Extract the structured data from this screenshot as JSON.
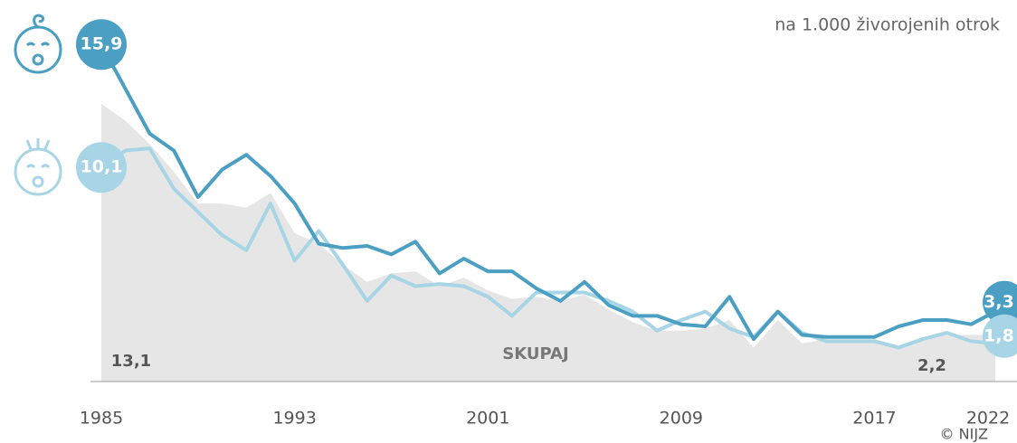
{
  "chart_data": {
    "type": "line",
    "annotation": "na 1.000 živorojenih otrok",
    "source": "© NIJZ",
    "x": [
      1985,
      1986,
      1987,
      1988,
      1989,
      1990,
      1991,
      1992,
      1993,
      1994,
      1995,
      1996,
      1997,
      1998,
      1999,
      2000,
      2001,
      2002,
      2003,
      2004,
      2005,
      2006,
      2007,
      2008,
      2009,
      2010,
      2011,
      2012,
      2013,
      2014,
      2015,
      2016,
      2017,
      2018,
      2019,
      2020,
      2021,
      2022
    ],
    "xlim": [
      1985,
      2022
    ],
    "xticks": [
      1985,
      1993,
      2001,
      2009,
      2017,
      2022
    ],
    "ylim": [
      0,
      18
    ],
    "series": [
      {
        "name": "SKUPAJ",
        "color": "#e6e6e6",
        "values": [
          13.1,
          12.3,
          11.2,
          9.9,
          8.4,
          8.4,
          8.2,
          8.9,
          7.0,
          6.5,
          5.5,
          4.7,
          5.1,
          5.2,
          4.5,
          4.9,
          4.3,
          3.9,
          4.0,
          3.8,
          4.1,
          3.4,
          2.8,
          2.4,
          2.4,
          2.5,
          2.9,
          1.6,
          2.9,
          1.8,
          2.0,
          2.0,
          2.0,
          1.7,
          2.1,
          2.2,
          2.2,
          2.2
        ],
        "value_labels": {
          "0": "13,1",
          "37": "2,2"
        }
      },
      {
        "color": "#4a9fc2",
        "values": [
          15.9,
          13.8,
          11.7,
          10.9,
          8.7,
          10.0,
          10.7,
          9.7,
          8.4,
          6.5,
          6.3,
          6.4,
          6.0,
          6.6,
          5.1,
          5.8,
          5.2,
          5.2,
          4.4,
          3.8,
          4.7,
          3.6,
          3.1,
          3.1,
          2.7,
          2.6,
          4.0,
          2.0,
          3.3,
          2.2,
          2.1,
          2.1,
          2.1,
          2.6,
          2.9,
          2.9,
          2.7,
          3.3
        ],
        "value_labels": {
          "0": "15,9",
          "37": "3,3"
        }
      },
      {
        "color": "#a8d5e5",
        "values": [
          10.1,
          10.9,
          11.0,
          9.1,
          8.0,
          6.9,
          6.2,
          8.4,
          5.7,
          7.1,
          5.5,
          3.8,
          5.0,
          4.5,
          4.6,
          4.5,
          4.0,
          3.1,
          4.2,
          4.2,
          4.2,
          3.8,
          3.3,
          2.4,
          2.9,
          3.3,
          2.5,
          2.1,
          3.3,
          2.3,
          1.9,
          1.9,
          1.9,
          1.6,
          2.0,
          2.3,
          1.9,
          1.8
        ],
        "value_labels": {
          "0": "10,1",
          "37": "1,8"
        }
      }
    ]
  }
}
